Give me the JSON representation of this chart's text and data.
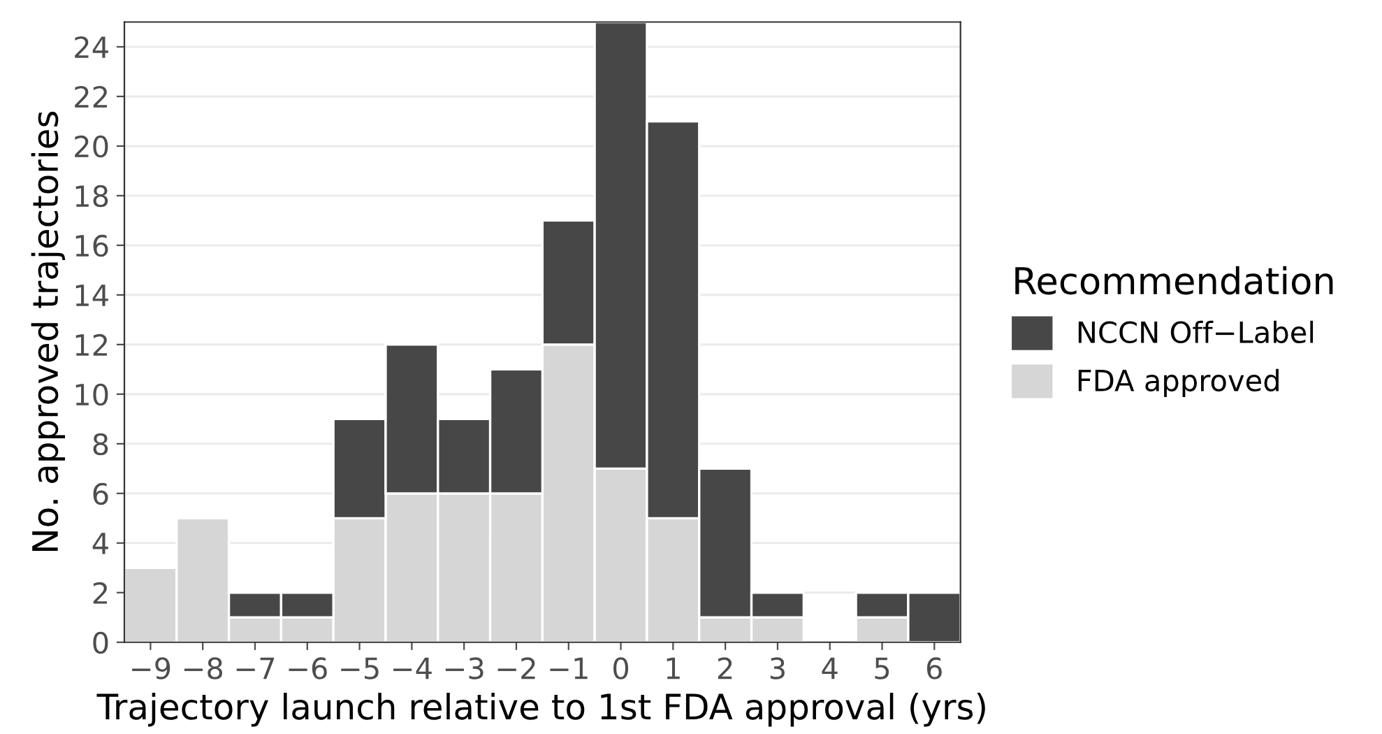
{
  "chart_data": {
    "type": "bar",
    "stacked": true,
    "xlabel": "Trajectory launch relative to 1st FDA approval (yrs)",
    "ylabel": "No. approved trajectories",
    "legend_title": "Recommendation",
    "categories": [
      "−9",
      "−8",
      "−7",
      "−6",
      "−5",
      "−4",
      "−3",
      "−2",
      "−1",
      "0",
      "1",
      "2",
      "3",
      "4",
      "5",
      "6"
    ],
    "series": [
      {
        "name": "FDA approved",
        "color": "#d6d6d6",
        "values": [
          3,
          5,
          1,
          1,
          5,
          6,
          6,
          6,
          12,
          7,
          5,
          1,
          1,
          0,
          1,
          0
        ]
      },
      {
        "name": "NCCN Off−Label",
        "color": "#474747",
        "values": [
          0,
          0,
          1,
          1,
          4,
          6,
          3,
          5,
          5,
          18,
          16,
          6,
          1,
          0,
          1,
          2
        ]
      }
    ],
    "ylim": [
      0,
      25
    ],
    "yticks": [
      0,
      2,
      4,
      6,
      8,
      10,
      12,
      14,
      16,
      18,
      20,
      22,
      24
    ],
    "grid": "y",
    "legend": "right"
  }
}
